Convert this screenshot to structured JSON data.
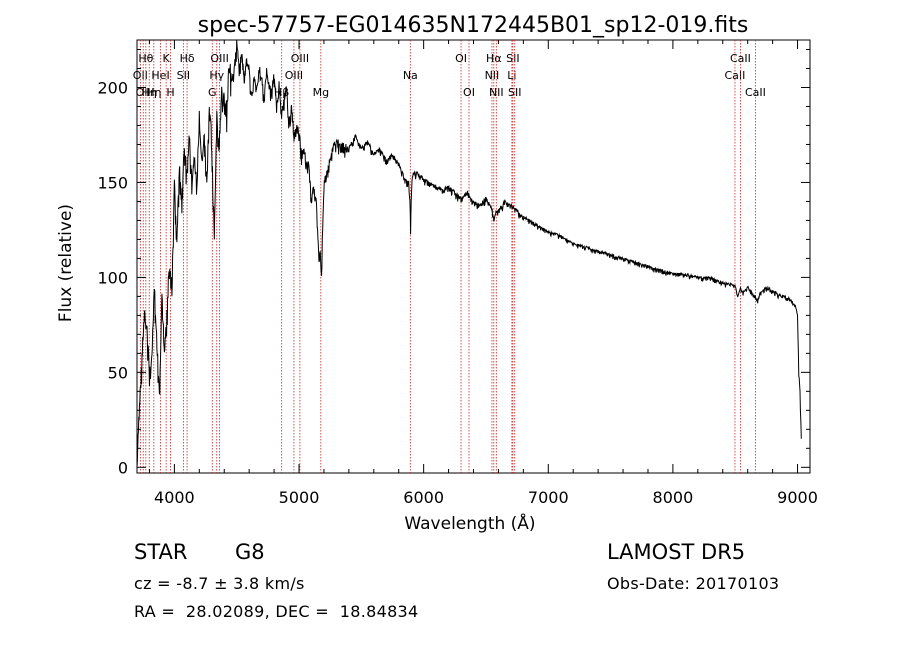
{
  "chart_data": {
    "type": "line",
    "title": "spec-57757-EG014635N172445B01_sp12-019.fits",
    "xlabel": "Wavelength (Å)",
    "ylabel": "Flux (relative)",
    "xlim": [
      3700,
      9100
    ],
    "ylim": [
      -3,
      225
    ],
    "x_ticks": [
      4000,
      5000,
      6000,
      7000,
      8000,
      9000
    ],
    "y_ticks": [
      0,
      50,
      100,
      150,
      200
    ],
    "grid": false,
    "series": [
      {
        "color": "#000000",
        "x": [
          3700,
          3720,
          3740,
          3760,
          3780,
          3800,
          3820,
          3840,
          3860,
          3880,
          3900,
          3920,
          3940,
          3960,
          3980,
          4000,
          4020,
          4040,
          4060,
          4080,
          4100,
          4120,
          4140,
          4160,
          4180,
          4200,
          4220,
          4240,
          4260,
          4280,
          4300,
          4320,
          4340,
          4360,
          4380,
          4400,
          4420,
          4440,
          4460,
          4480,
          4500,
          4520,
          4540,
          4560,
          4580,
          4600,
          4620,
          4640,
          4660,
          4680,
          4700,
          4720,
          4740,
          4760,
          4780,
          4800,
          4820,
          4840,
          4860,
          4880,
          4900,
          4920,
          4940,
          4960,
          4980,
          5000,
          5020,
          5040,
          5060,
          5080,
          5100,
          5120,
          5140,
          5160,
          5170,
          5180,
          5190,
          5200,
          5220,
          5240,
          5260,
          5280,
          5300,
          5350,
          5400,
          5450,
          5500,
          5550,
          5600,
          5650,
          5700,
          5750,
          5800,
          5850,
          5880,
          5890,
          5895,
          5900,
          5910,
          5950,
          6000,
          6050,
          6100,
          6150,
          6200,
          6250,
          6300,
          6350,
          6400,
          6450,
          6500,
          6550,
          6563,
          6580,
          6600,
          6650,
          6700,
          6750,
          6800,
          6850,
          6900,
          6950,
          7000,
          7100,
          7200,
          7300,
          7400,
          7500,
          7600,
          7700,
          7800,
          7900,
          8000,
          8100,
          8200,
          8300,
          8400,
          8498,
          8520,
          8542,
          8560,
          8600,
          8662,
          8680,
          8700,
          8750,
          8800,
          8850,
          8900,
          8950,
          8990,
          9000,
          9010,
          9020,
          9030
        ],
        "y": [
          0,
          35,
          60,
          80,
          75,
          50,
          60,
          95,
          65,
          40,
          90,
          60,
          80,
          110,
          95,
          150,
          120,
          160,
          140,
          170,
          155,
          175,
          150,
          165,
          150,
          185,
          160,
          175,
          150,
          190,
          175,
          120,
          185,
          170,
          200,
          195,
          190,
          215,
          205,
          210,
          225,
          210,
          220,
          205,
          215,
          210,
          195,
          205,
          200,
          212,
          205,
          195,
          210,
          200,
          198,
          207,
          190,
          202,
          185,
          195,
          200,
          182,
          190,
          175,
          180,
          178,
          165,
          170,
          160,
          160,
          140,
          150,
          140,
          110,
          115,
          100,
          130,
          150,
          155,
          160,
          165,
          170,
          172,
          170,
          168,
          175,
          168,
          172,
          165,
          168,
          162,
          165,
          160,
          152,
          150,
          140,
          125,
          140,
          155,
          155,
          152,
          150,
          148,
          146,
          148,
          145,
          142,
          145,
          140,
          138,
          142,
          136,
          130,
          134,
          135,
          140,
          138,
          135,
          132,
          130,
          128,
          126,
          124,
          122,
          118,
          116,
          114,
          112,
          110,
          108,
          106,
          104,
          102,
          102,
          100,
          100,
          97,
          96,
          90,
          95,
          92,
          95,
          90,
          88,
          92,
          95,
          93,
          91,
          90,
          88,
          84,
          80,
          50,
          40,
          15
        ]
      }
    ],
    "line_markers": [
      {
        "wave": 3727,
        "label": "OII",
        "row": 1
      },
      {
        "wave": 3750,
        "label": "OII",
        "row": 2
      },
      {
        "wave": 3771,
        "label": "Hθ",
        "row": 0
      },
      {
        "wave": 3798,
        "label": "Hη",
        "row": 2
      },
      {
        "wave": 3835,
        "label": "Hη",
        "row": 2
      },
      {
        "wave": 3889,
        "label": "HeI",
        "row": 1
      },
      {
        "wave": 3934,
        "label": "K",
        "row": 0
      },
      {
        "wave": 3969,
        "label": "H",
        "row": 2
      },
      {
        "wave": 4072,
        "label": "SII",
        "row": 1
      },
      {
        "wave": 4102,
        "label": "Hδ",
        "row": 0
      },
      {
        "wave": 4304,
        "label": "G",
        "row": 2
      },
      {
        "wave": 4340,
        "label": "Hγ",
        "row": 1
      },
      {
        "wave": 4363,
        "label": "OIII",
        "row": 0
      },
      {
        "wave": 4861,
        "label": "Hβ",
        "row": 2
      },
      {
        "wave": 4959,
        "label": "OIII",
        "row": 1
      },
      {
        "wave": 5007,
        "label": "OIII",
        "row": 0
      },
      {
        "wave": 5175,
        "label": "Mg",
        "row": 2
      },
      {
        "wave": 5893,
        "label": "Na",
        "row": 1
      },
      {
        "wave": 6300,
        "label": "OI",
        "row": 0
      },
      {
        "wave": 6364,
        "label": "OI",
        "row": 2
      },
      {
        "wave": 6548,
        "label": "NII",
        "row": 1
      },
      {
        "wave": 6563,
        "label": "Hα",
        "row": 0
      },
      {
        "wave": 6583,
        "label": "NII",
        "row": 2
      },
      {
        "wave": 6708,
        "label": "Li",
        "row": 1
      },
      {
        "wave": 6716,
        "label": "SII",
        "row": 0
      },
      {
        "wave": 6731,
        "label": "SII",
        "row": 2
      },
      {
        "wave": 8498,
        "label": "CaII",
        "row": 1
      },
      {
        "wave": 8542,
        "label": "CaII",
        "row": 0
      },
      {
        "wave": 8662,
        "label": "CaII",
        "row": 2
      }
    ]
  },
  "info": {
    "class": "STAR",
    "subclass": "G8",
    "survey": "LAMOST DR5",
    "cz": "cz = -8.7 ± 3.8 km/s",
    "obs_date": "Obs-Date: 20170103",
    "radec": "RA =  28.02089, DEC =  18.84834"
  }
}
